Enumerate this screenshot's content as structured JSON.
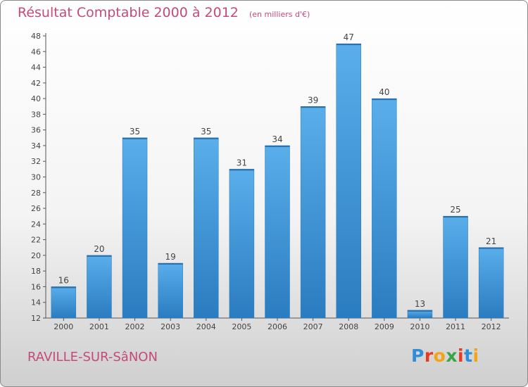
{
  "header": {
    "title": "Résultat Comptable 2000 à 2012",
    "unit": "(en milliers d'€)"
  },
  "footer": {
    "commune": "RAVILLE-SUR-SâNON",
    "logo_letters": [
      "P",
      "r",
      "o",
      "x",
      "i",
      "t",
      "i"
    ],
    "logo_colors": [
      "#2e8ed8",
      "#e63b1f",
      "#f2a318",
      "#3aa546",
      "#e63b1f",
      "#2e8ed8",
      "#f2a318"
    ]
  },
  "colors": {
    "text": "#c44a7a",
    "bar": "#3d93d6",
    "axis": "#555555"
  },
  "chart_data": {
    "type": "bar",
    "title": "Résultat Comptable 2000 à 2012",
    "subtitle": "(en milliers d'€)",
    "categories": [
      "2000",
      "2001",
      "2002",
      "2003",
      "2004",
      "2005",
      "2006",
      "2007",
      "2008",
      "2009",
      "2010",
      "2011",
      "2012"
    ],
    "values": [
      16,
      20,
      35,
      19,
      35,
      31,
      34,
      39,
      47,
      40,
      13,
      25,
      21
    ],
    "ylim": [
      12,
      48
    ],
    "yticks": [
      12,
      14,
      16,
      18,
      20,
      22,
      24,
      26,
      28,
      30,
      32,
      34,
      36,
      38,
      40,
      42,
      44,
      46,
      48
    ],
    "grid": false,
    "data_labels": true
  }
}
